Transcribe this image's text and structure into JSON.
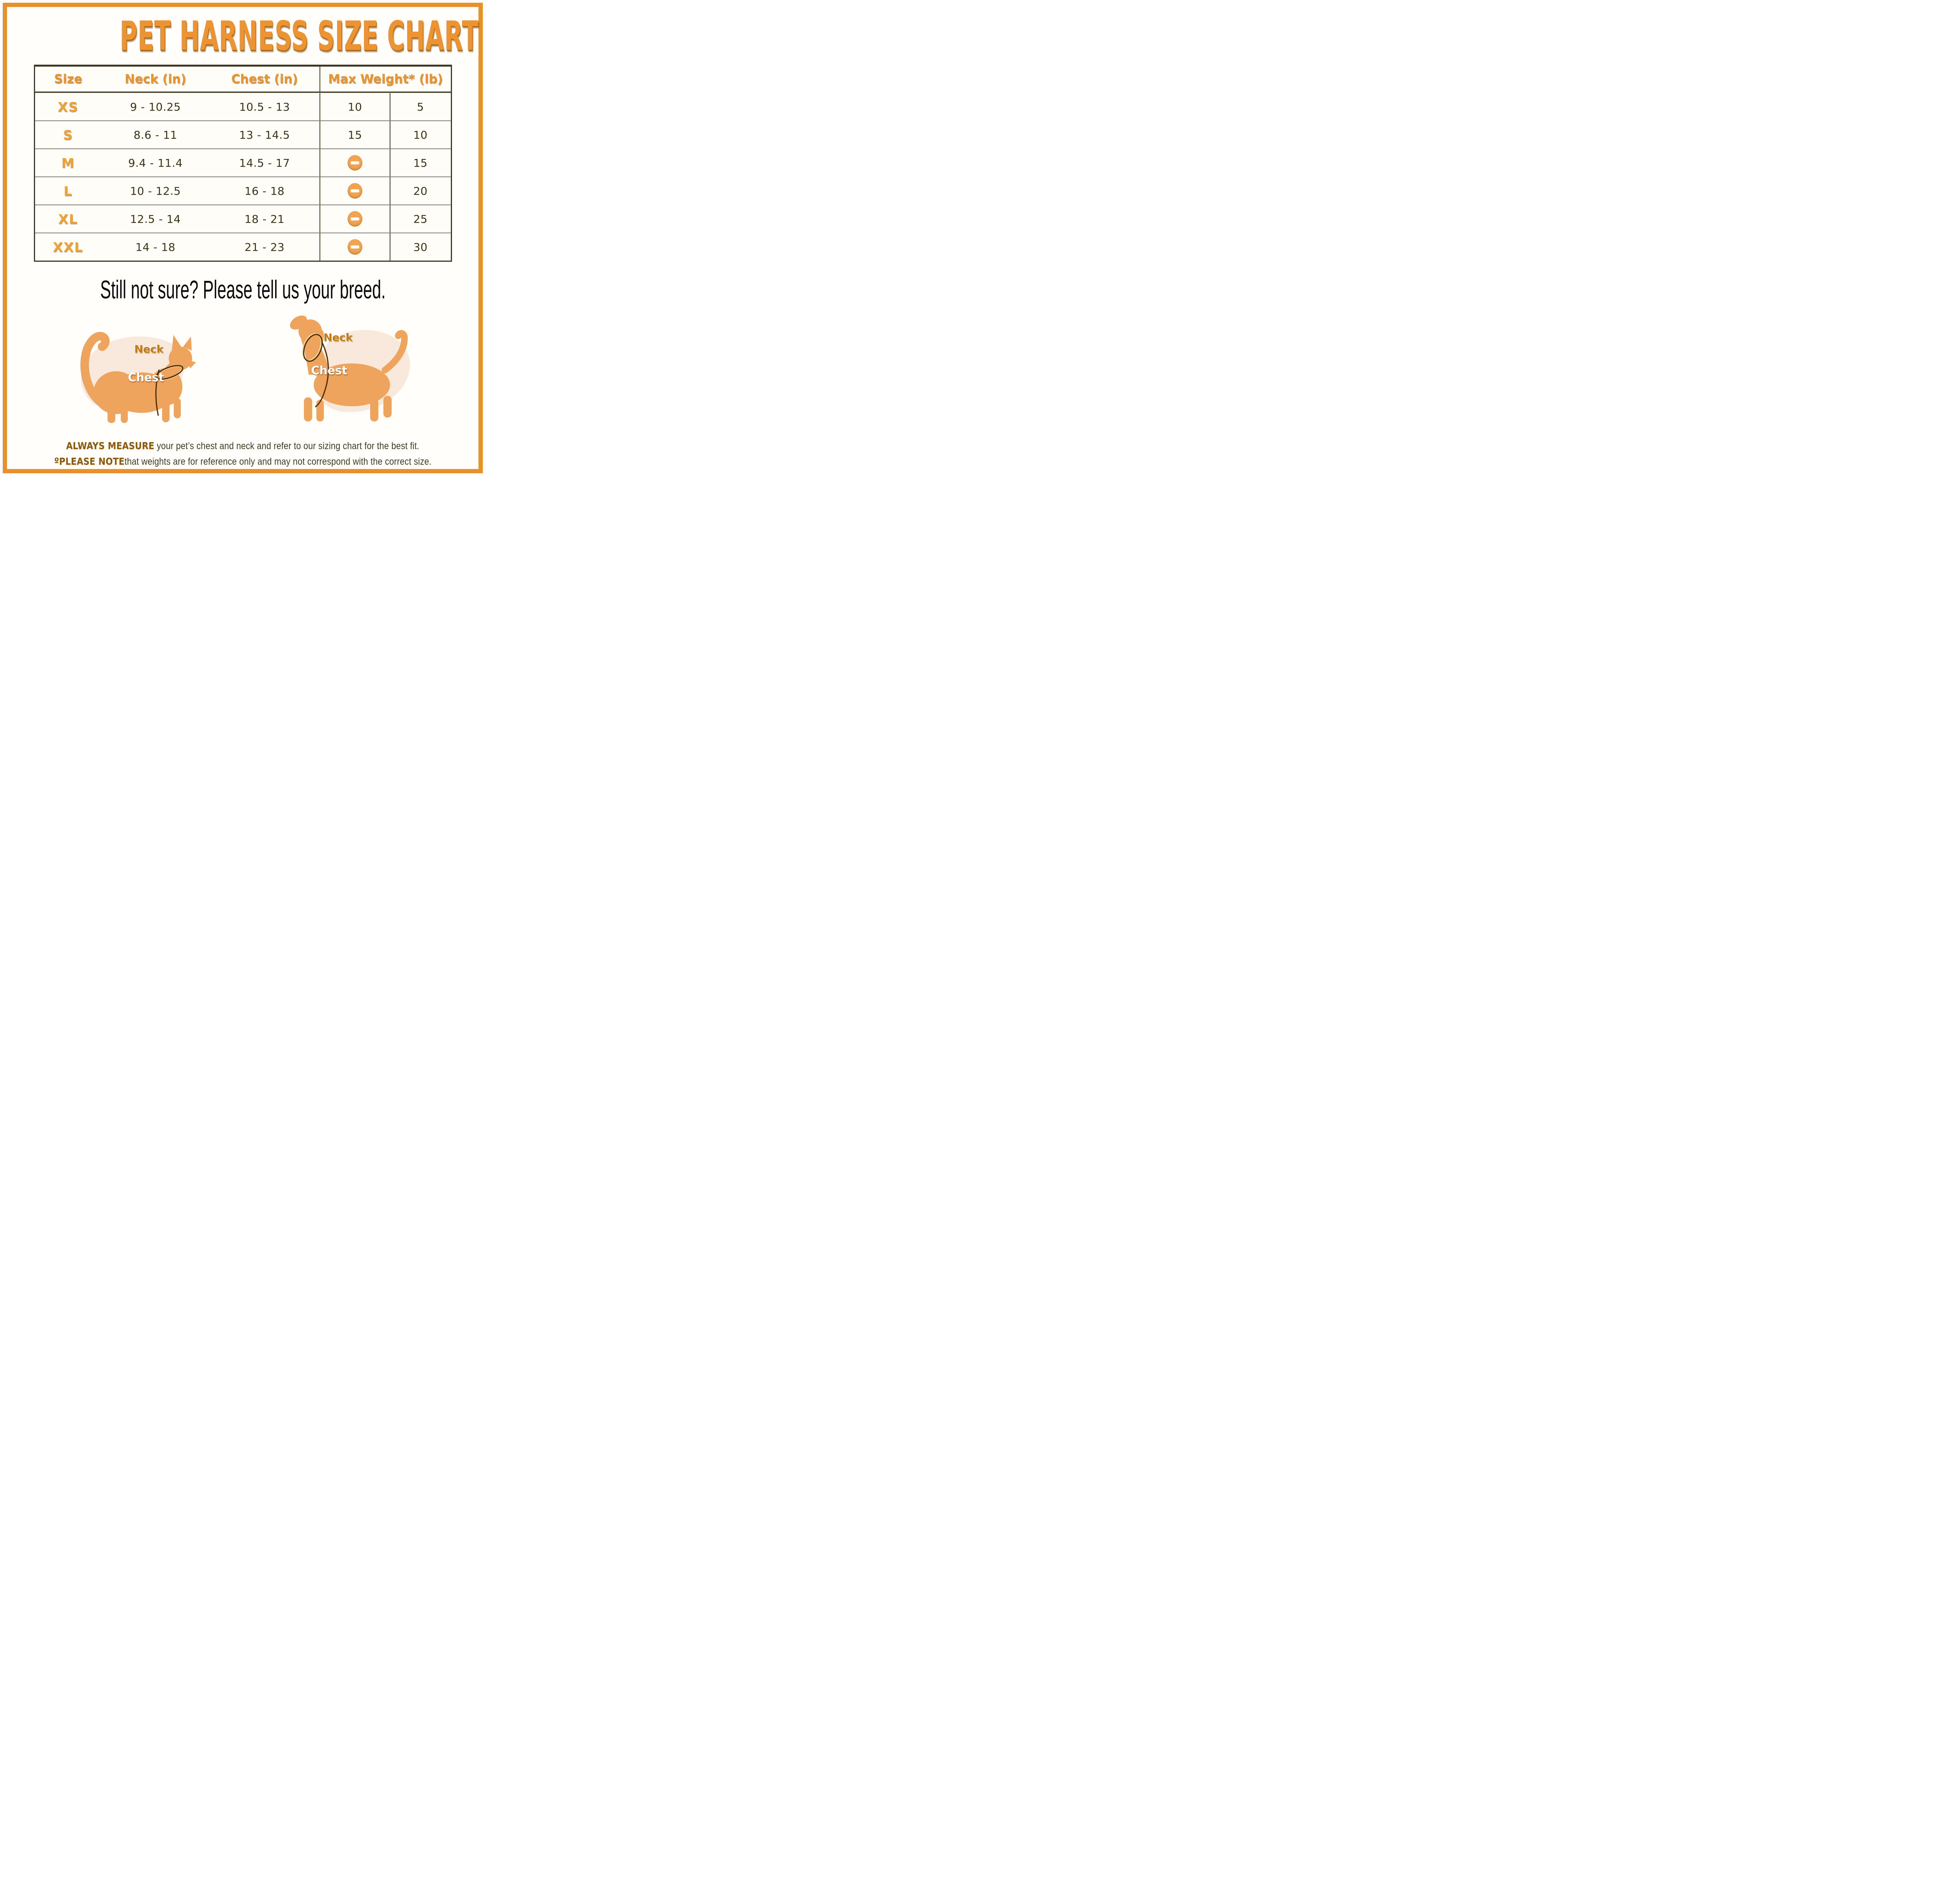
{
  "title": "PET HARNESS SIZE CHART",
  "table": {
    "headers": {
      "size": "Size",
      "neck": "Neck (in)",
      "chest": "Chest (in)",
      "max_weight": "Max Weight* (lb)"
    },
    "rows": [
      {
        "size": "XS",
        "neck": "9 - 10.25",
        "chest": "10.5 - 13",
        "cat_weight": "10",
        "dog_weight": "5"
      },
      {
        "size": "S",
        "neck": "8.6 - 11",
        "chest": "13 - 14.5",
        "cat_weight": "15",
        "dog_weight": "10"
      },
      {
        "size": "M",
        "neck": "9.4 - 11.4",
        "chest": "14.5 - 17",
        "cat_weight": null,
        "dog_weight": "15"
      },
      {
        "size": "L",
        "neck": "10 - 12.5",
        "chest": "16 - 18",
        "cat_weight": null,
        "dog_weight": "20"
      },
      {
        "size": "XL",
        "neck": "12.5 - 14",
        "chest": "18 - 21",
        "cat_weight": null,
        "dog_weight": "25"
      },
      {
        "size": "XXL",
        "neck": "14 - 18",
        "chest": "21 - 23",
        "cat_weight": null,
        "dog_weight": "30"
      }
    ],
    "not_available_icon": "minus-icon"
  },
  "subtitle": "Still not sure? Please tell us your breed.",
  "diagram": {
    "neck_label": "Neck",
    "chest_label": "Chest"
  },
  "footer": {
    "line1_bold": "ALWAYS MEASURE",
    "line1_rest": " your pet’s chest and neck and refer to our sizing chart for the best fit.",
    "line2_bold": "ºPLEASE NOTE",
    "line2_rest": "that weights are for reference only and may not correspond with the correct size."
  },
  "colors": {
    "accent_frame": "#E8912C",
    "title_orange": "#EE9332",
    "table_border": "#3E3920",
    "number_text": "#3B3217",
    "minus_icon_bg": "#F0A351",
    "silhouette": "#EFA45E",
    "blob": "#F8E9DC",
    "harness_line": "#4A2C08"
  }
}
